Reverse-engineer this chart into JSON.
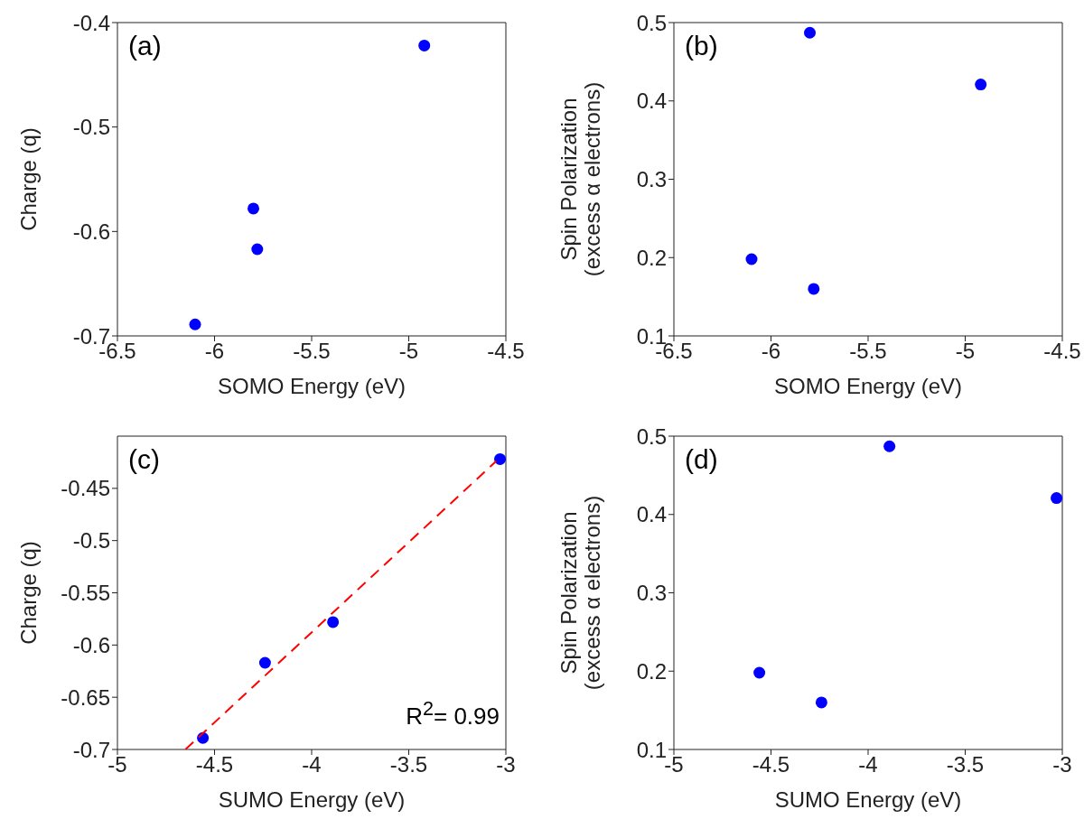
{
  "chart_data": [
    {
      "type": "scatter",
      "xlabel": "SOMO Energy (eV)",
      "ylabel": "Charge (q)",
      "annotations": [
        "(a)"
      ],
      "marker": "circle",
      "xlim": [
        -6.5,
        -4.5
      ],
      "xticks": [
        -6.5,
        -6,
        -5.5,
        -5,
        -4.5
      ],
      "ylim": [
        -0.7,
        -0.4
      ],
      "yticks": [
        -0.7,
        -0.6,
        -0.5,
        -0.4
      ],
      "series": [
        {
          "color": "#0000ff",
          "x": [
            -6.1,
            -5.8,
            -5.78,
            -4.92
          ],
          "values": [
            -0.689,
            -0.578,
            -0.617,
            -0.422
          ]
        }
      ]
    },
    {
      "type": "scatter",
      "xlabel": "SOMO Energy (eV)",
      "ylabel": "Spin Polarization\n(excess α electrons)",
      "annotations": [
        "(b)"
      ],
      "marker": "circle",
      "xlim": [
        -6.5,
        -4.5
      ],
      "xticks": [
        -6.5,
        -6,
        -5.5,
        -5,
        -4.5
      ],
      "ylim": [
        0.1,
        0.5
      ],
      "yticks": [
        0.1,
        0.2,
        0.3,
        0.4,
        0.5
      ],
      "series": [
        {
          "color": "#0000ff",
          "x": [
            -6.1,
            -5.8,
            -5.78,
            -4.92
          ],
          "values": [
            0.198,
            0.487,
            0.16,
            0.421
          ]
        }
      ]
    },
    {
      "type": "scatter",
      "xlabel": "SUMO Energy (eV)",
      "ylabel": "Charge (q)",
      "annotations": [
        "(c)",
        "R$^{2}$= 0.99"
      ],
      "marker": "circle",
      "xlim": [
        -5,
        -3
      ],
      "xticks": [
        -5,
        -4.5,
        -4,
        -3.5,
        -3
      ],
      "ylim": [
        -0.7,
        -0.4
      ],
      "yticks": [
        -0.7,
        -0.65,
        -0.6,
        -0.55,
        -0.5,
        -0.45
      ],
      "series": [
        {
          "color": "#0000ff",
          "x": [
            -4.56,
            -3.89,
            -4.24,
            -3.03
          ],
          "values": [
            -0.689,
            -0.578,
            -0.617,
            -0.422
          ]
        },
        {
          "type": "line",
          "color": "#ff0000",
          "line_style": "dashed",
          "marker": "none",
          "x": [
            -4.65,
            -3.05
          ],
          "values": [
            -0.7,
            -0.424
          ]
        }
      ]
    },
    {
      "type": "scatter",
      "xlabel": "SUMO Energy (eV)",
      "ylabel": "Spin Polarization\n(excess α electrons)",
      "annotations": [
        "(d)"
      ],
      "marker": "circle",
      "xlim": [
        -5,
        -3
      ],
      "xticks": [
        -5,
        -4.5,
        -4,
        -3.5,
        -3
      ],
      "ylim": [
        0.1,
        0.5
      ],
      "yticks": [
        0.1,
        0.2,
        0.3,
        0.4,
        0.5
      ],
      "series": [
        {
          "color": "#0000ff",
          "x": [
            -4.56,
            -3.89,
            -4.24,
            -3.03
          ],
          "values": [
            0.198,
            0.487,
            0.16,
            0.421
          ]
        }
      ]
    }
  ]
}
